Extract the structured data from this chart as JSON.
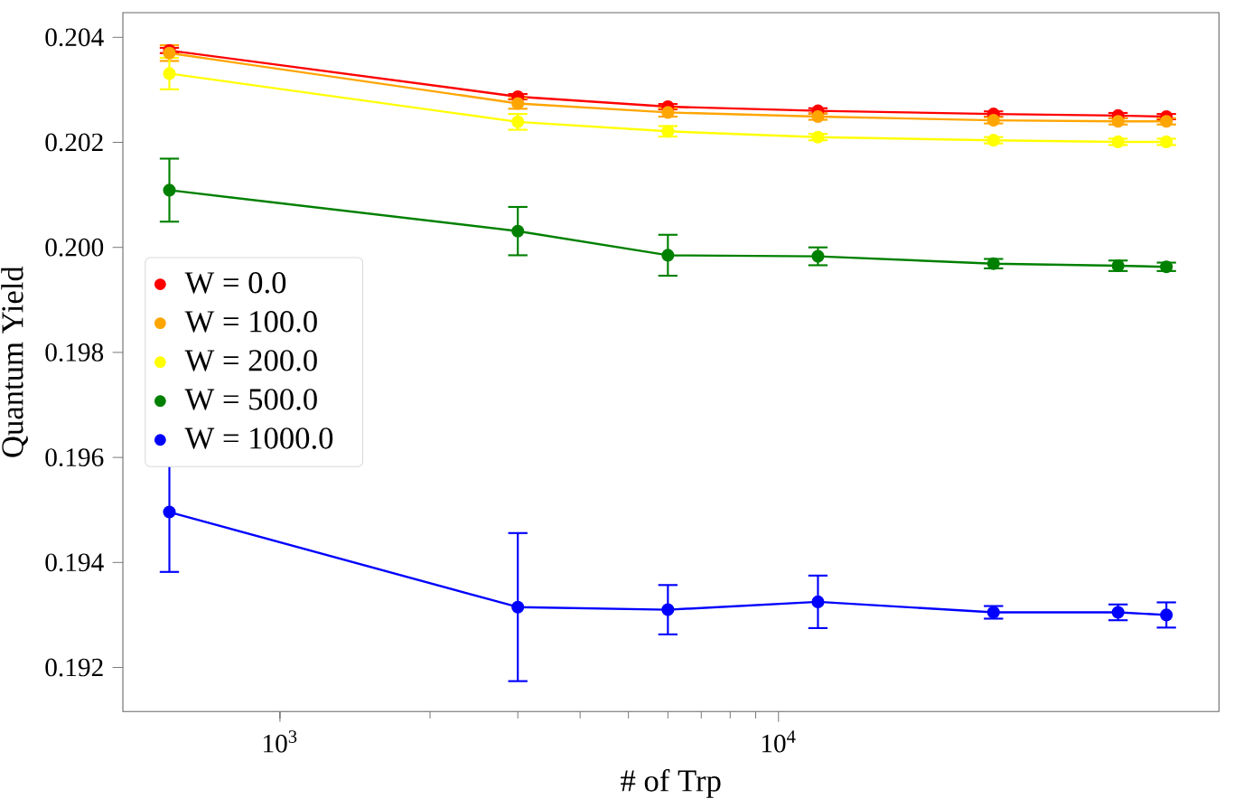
{
  "chart_data": {
    "type": "line",
    "xlabel": "# of Trp",
    "ylabel": "Quantum Yield",
    "log": "x",
    "marker": "circle",
    "line_style": "solid",
    "legend": "left",
    "x": [
      600,
      3000,
      6000,
      12000,
      27000,
      48000,
      60000
    ],
    "xlim": [
      484,
      76500
    ],
    "xticks": [
      {
        "value": 1000,
        "label": "10$^{3}$"
      },
      {
        "value": 10000,
        "label": "10$^{4}$"
      }
    ],
    "ylim": [
      0.19116,
      0.20447
    ],
    "yticks": [
      0.192,
      0.194,
      0.196,
      0.198,
      {
        "value": 0.2,
        "label": "0.200"
      },
      0.202,
      0.204
    ],
    "series": [
      {
        "name": "W = 0.0",
        "color": "#ff0000",
        "values": [
          0.20375,
          0.20287,
          0.20268,
          0.2026,
          0.20254,
          0.20251,
          0.20249
        ],
        "errors": [
          5e-05,
          5e-05,
          5e-05,
          5e-05,
          5e-05,
          5e-05,
          5e-05
        ]
      },
      {
        "name": "W = 100.0",
        "color": "#ffa500",
        "values": [
          0.2037,
          0.20274,
          0.20257,
          0.20249,
          0.20242,
          0.2024,
          0.2024
        ],
        "errors": [
          0.00015,
          0.0001,
          8e-05,
          6e-05,
          6e-05,
          6e-05,
          6e-05
        ]
      },
      {
        "name": "W = 200.0",
        "color": "#ffff00",
        "values": [
          0.20331,
          0.20239,
          0.20221,
          0.2021,
          0.20204,
          0.20201,
          0.20201
        ],
        "errors": [
          0.0003,
          0.00015,
          0.0001,
          6e-05,
          6e-05,
          6e-05,
          6e-05
        ]
      },
      {
        "name": "W = 500.0",
        "color": "#008000",
        "values": [
          0.20109,
          0.20031,
          0.19985,
          0.19983,
          0.19969,
          0.19965,
          0.19963
        ],
        "errors": [
          0.0006,
          0.00046,
          0.00039,
          0.00017,
          9e-05,
          0.0001,
          8e-05
        ]
      },
      {
        "name": "W = 1000.0",
        "color": "#0000ff",
        "values": [
          0.19496,
          0.19315,
          0.1931,
          0.19325,
          0.19305,
          0.19305,
          0.193
        ],
        "errors": [
          0.00114,
          0.00141,
          0.00047,
          0.0005,
          0.00012,
          0.00015,
          0.00024
        ]
      }
    ]
  }
}
